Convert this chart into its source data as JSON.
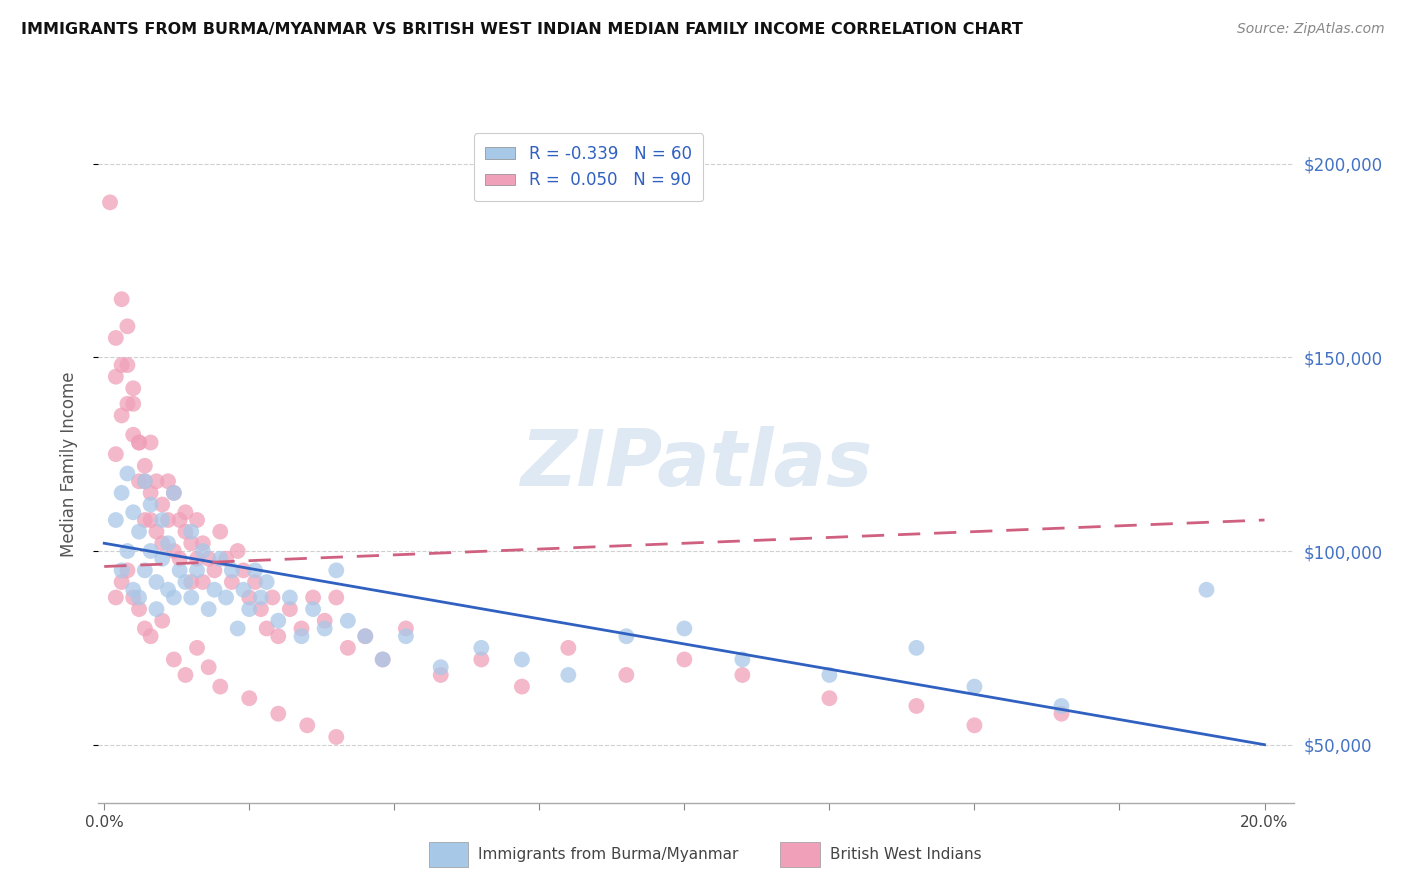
{
  "title": "IMMIGRANTS FROM BURMA/MYANMAR VS BRITISH WEST INDIAN MEDIAN FAMILY INCOME CORRELATION CHART",
  "source": "Source: ZipAtlas.com",
  "ylabel": "Median Family Income",
  "y_ticks": [
    50000,
    100000,
    150000,
    200000
  ],
  "y_tick_labels": [
    "$50,000",
    "$100,000",
    "$150,000",
    "$200,000"
  ],
  "xlim": [
    -0.001,
    0.205
  ],
  "ylim": [
    35000,
    210000
  ],
  "watermark": "ZIPatlas",
  "blue_scatter_color": "#a8c8e8",
  "pink_scatter_color": "#f0a0b8",
  "blue_line_color": "#3060c0",
  "pink_line_color": "#d06080",
  "blue_line_x0": 0.0,
  "blue_line_y0": 102000,
  "blue_line_x1": 0.2,
  "blue_line_y1": 50000,
  "pink_line_x0": 0.0,
  "pink_line_y0": 96000,
  "pink_line_x1": 0.2,
  "pink_line_y1": 108000,
  "legend_r_blue": "-0.339",
  "legend_n_blue": "60",
  "legend_r_pink": "0.050",
  "legend_n_pink": "90",
  "scatter_size": 130,
  "scatter_alpha": 0.75,
  "blue_x": [
    0.002,
    0.003,
    0.003,
    0.004,
    0.004,
    0.005,
    0.005,
    0.006,
    0.006,
    0.007,
    0.007,
    0.008,
    0.008,
    0.009,
    0.009,
    0.01,
    0.01,
    0.011,
    0.011,
    0.012,
    0.012,
    0.013,
    0.014,
    0.015,
    0.015,
    0.016,
    0.017,
    0.018,
    0.019,
    0.02,
    0.021,
    0.022,
    0.023,
    0.024,
    0.025,
    0.026,
    0.027,
    0.028,
    0.03,
    0.032,
    0.034,
    0.036,
    0.038,
    0.04,
    0.042,
    0.045,
    0.048,
    0.052,
    0.058,
    0.065,
    0.072,
    0.08,
    0.09,
    0.1,
    0.11,
    0.125,
    0.14,
    0.15,
    0.165,
    0.19
  ],
  "blue_y": [
    108000,
    115000,
    95000,
    120000,
    100000,
    110000,
    90000,
    105000,
    88000,
    118000,
    95000,
    100000,
    112000,
    92000,
    85000,
    108000,
    98000,
    90000,
    102000,
    88000,
    115000,
    95000,
    92000,
    88000,
    105000,
    95000,
    100000,
    85000,
    90000,
    98000,
    88000,
    95000,
    80000,
    90000,
    85000,
    95000,
    88000,
    92000,
    82000,
    88000,
    78000,
    85000,
    80000,
    95000,
    82000,
    78000,
    72000,
    78000,
    70000,
    75000,
    72000,
    68000,
    78000,
    80000,
    72000,
    68000,
    75000,
    65000,
    60000,
    90000
  ],
  "pink_x": [
    0.001,
    0.002,
    0.002,
    0.003,
    0.003,
    0.004,
    0.004,
    0.005,
    0.005,
    0.006,
    0.006,
    0.007,
    0.007,
    0.008,
    0.008,
    0.009,
    0.009,
    0.01,
    0.01,
    0.011,
    0.011,
    0.012,
    0.012,
    0.013,
    0.013,
    0.014,
    0.014,
    0.015,
    0.015,
    0.016,
    0.016,
    0.017,
    0.017,
    0.018,
    0.019,
    0.02,
    0.021,
    0.022,
    0.023,
    0.024,
    0.025,
    0.026,
    0.027,
    0.028,
    0.029,
    0.03,
    0.032,
    0.034,
    0.036,
    0.038,
    0.04,
    0.042,
    0.045,
    0.048,
    0.052,
    0.058,
    0.065,
    0.072,
    0.08,
    0.09,
    0.1,
    0.11,
    0.125,
    0.14,
    0.15,
    0.165,
    0.002,
    0.003,
    0.004,
    0.005,
    0.006,
    0.007,
    0.008,
    0.01,
    0.012,
    0.014,
    0.016,
    0.018,
    0.02,
    0.025,
    0.03,
    0.035,
    0.04,
    0.002,
    0.003,
    0.004,
    0.005,
    0.006,
    0.007,
    0.008
  ],
  "pink_y": [
    190000,
    125000,
    155000,
    165000,
    148000,
    158000,
    138000,
    130000,
    142000,
    128000,
    118000,
    122000,
    108000,
    128000,
    115000,
    118000,
    105000,
    112000,
    102000,
    118000,
    108000,
    115000,
    100000,
    108000,
    98000,
    110000,
    105000,
    102000,
    92000,
    108000,
    98000,
    102000,
    92000,
    98000,
    95000,
    105000,
    98000,
    92000,
    100000,
    95000,
    88000,
    92000,
    85000,
    80000,
    88000,
    78000,
    85000,
    80000,
    88000,
    82000,
    88000,
    75000,
    78000,
    72000,
    80000,
    68000,
    72000,
    65000,
    75000,
    68000,
    72000,
    68000,
    62000,
    60000,
    55000,
    58000,
    88000,
    92000,
    95000,
    88000,
    85000,
    80000,
    78000,
    82000,
    72000,
    68000,
    75000,
    70000,
    65000,
    62000,
    58000,
    55000,
    52000,
    145000,
    135000,
    148000,
    138000,
    128000,
    118000,
    108000
  ]
}
